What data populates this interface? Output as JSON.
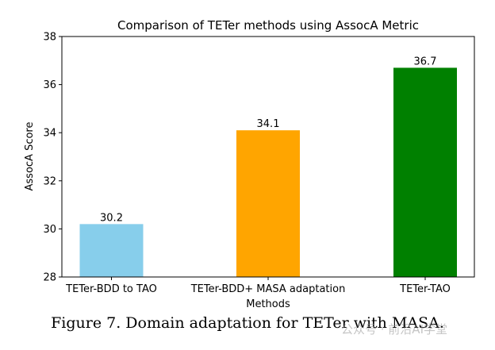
{
  "chart_data": {
    "type": "bar",
    "title": "Comparison of TETer methods using AssocA Metric",
    "xlabel": "Methods",
    "ylabel": "AssocA Score",
    "ylim": [
      28,
      38
    ],
    "yticks": [
      "28",
      "30",
      "32",
      "34",
      "36",
      "38"
    ],
    "categories": [
      "TETer-BDD to TAO",
      "TETer-BDD+ MASA adaptation",
      "TETer-TAO"
    ],
    "values": [
      30.2,
      34.1,
      36.7
    ],
    "value_labels": [
      "30.2",
      "34.1",
      "36.7"
    ],
    "colors": [
      "#87ceeb",
      "#ffa500",
      "#008000"
    ],
    "grid": false,
    "legend": "none"
  },
  "caption": "Figure 7. Domain adaptation for TETer with MASA.",
  "watermark": "公众号 · 前沿AI学堂"
}
